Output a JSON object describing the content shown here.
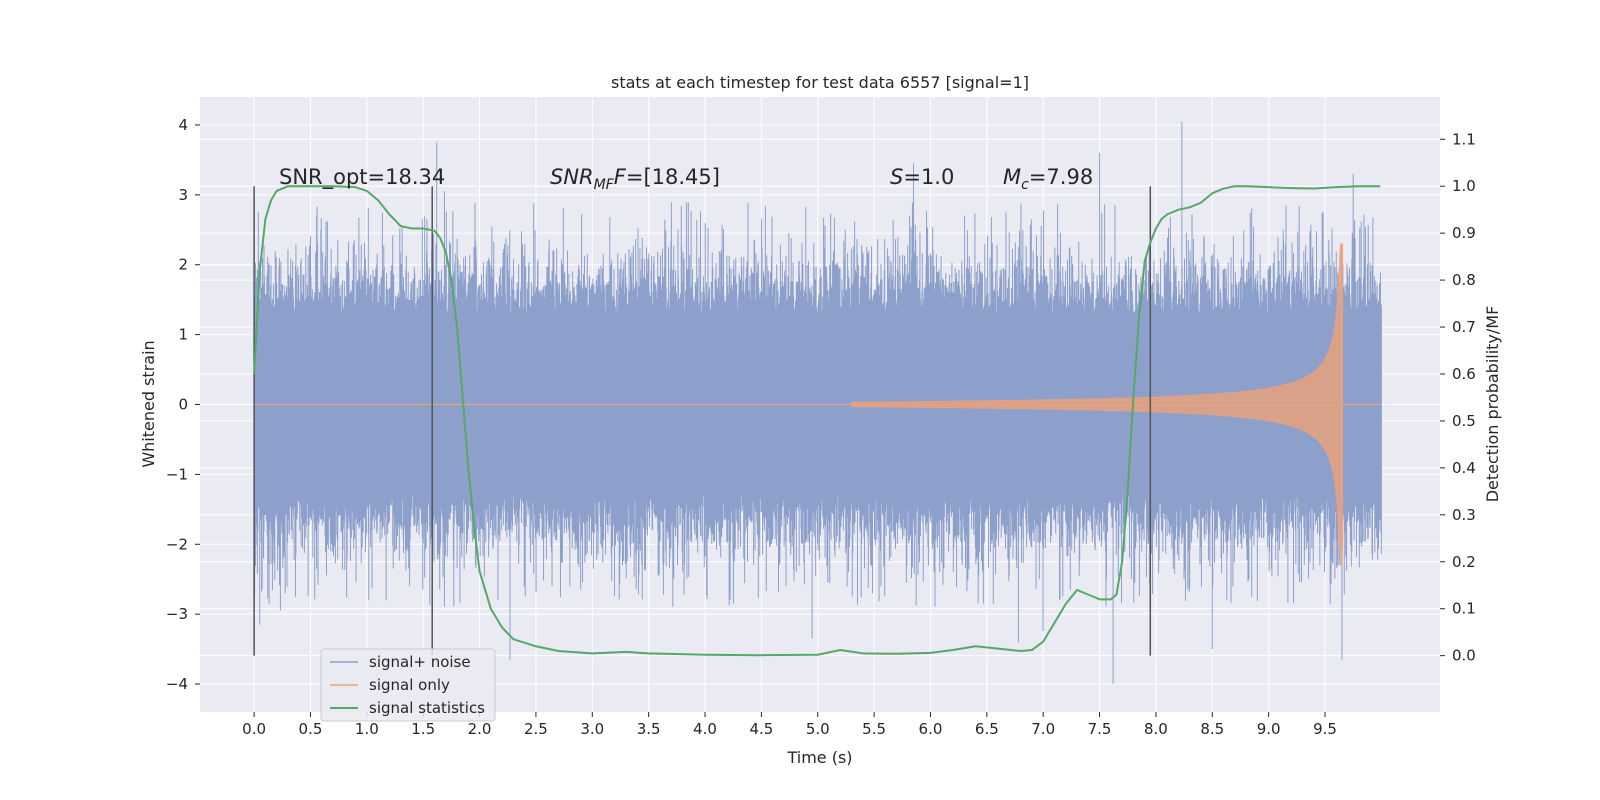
{
  "chart_data": {
    "type": "line",
    "title": "stats at each timestep for test data 6557 [signal=1]",
    "xlabel": "Time (s)",
    "ylabel": "Whitened strain",
    "y2label": "Detection probability/MF",
    "xlim": [
      -0.48,
      10.52
    ],
    "ylim": [
      -4.4,
      4.4
    ],
    "y2lim": [
      -0.12,
      1.19
    ],
    "x_ticks": [
      "0.0",
      "0.5",
      "1.0",
      "1.5",
      "2.0",
      "2.5",
      "3.0",
      "3.5",
      "4.0",
      "4.5",
      "5.0",
      "5.5",
      "6.0",
      "6.5",
      "7.0",
      "7.5",
      "8.0",
      "8.5",
      "9.0",
      "9.5"
    ],
    "y_ticks": [
      -4,
      -3,
      -2,
      -1,
      0,
      1,
      2,
      3,
      4
    ],
    "y_tick_labels": [
      "−4",
      "−3",
      "−2",
      "−1",
      "0",
      "1",
      "2",
      "3",
      "4"
    ],
    "y2_ticks": [
      "0.0",
      "0.1",
      "0.2",
      "0.3",
      "0.4",
      "0.5",
      "0.6",
      "0.7",
      "0.8",
      "0.9",
      "1.0",
      "1.1"
    ],
    "grid": true,
    "legend_position": "bottom-left",
    "colors": {
      "noise": "#8da0cb",
      "signal": "#e8a17e",
      "stats": "#55a868",
      "background": "#eaeaf2",
      "grid": "#ffffff",
      "vlines": "#555555"
    },
    "annotations": {
      "snr_opt": "SNR_opt=18.34",
      "snr_mf_base": "SNR",
      "snr_mf_sub": "MF",
      "snr_mf_value": "=[18.45]",
      "s_base": "S",
      "s_value": "=1.0",
      "mc_base": "M",
      "mc_sub": "c",
      "mc_value": "=7.98"
    },
    "vertical_markers_x": [
      0.0,
      1.58,
      7.95
    ],
    "series": [
      {
        "name": "signal+ noise",
        "description": "noisy whitened strain, x from 0 to 10 s",
        "x_range": [
          0.0,
          10.0
        ],
        "spike_events": [
          [
            0.05,
            -3.15
          ],
          [
            1.62,
            3.75
          ],
          [
            2.27,
            -3.65
          ],
          [
            4.95,
            -3.35
          ],
          [
            5.85,
            3.45
          ],
          [
            6.78,
            -3.4
          ],
          [
            7.5,
            3.6
          ],
          [
            7.62,
            -4.0
          ],
          [
            8.23,
            4.05
          ],
          [
            8.5,
            -3.5
          ],
          [
            9.65,
            -3.65
          ],
          [
            9.75,
            3.3
          ]
        ]
      },
      {
        "name": "signal only",
        "description": "chirp, amplitude grows until merger near 9.65 s",
        "x_range": [
          5.3,
          9.65
        ],
        "peak_amplitude": 2.3
      },
      {
        "name": "signal statistics",
        "axis": "right",
        "x": [
          0.0,
          0.05,
          0.1,
          0.15,
          0.2,
          0.3,
          0.5,
          0.7,
          0.9,
          1.0,
          1.1,
          1.2,
          1.3,
          1.4,
          1.5,
          1.6,
          1.65,
          1.7,
          1.75,
          1.8,
          1.85,
          1.9,
          1.95,
          2.0,
          2.1,
          2.2,
          2.3,
          2.5,
          2.7,
          3.0,
          3.3,
          3.5,
          4.0,
          4.5,
          5.0,
          5.2,
          5.4,
          5.7,
          6.0,
          6.2,
          6.4,
          6.6,
          6.8,
          6.9,
          7.0,
          7.1,
          7.2,
          7.3,
          7.4,
          7.5,
          7.6,
          7.65,
          7.7,
          7.75,
          7.8,
          7.85,
          7.9,
          7.95,
          8.0,
          8.05,
          8.1,
          8.2,
          8.3,
          8.4,
          8.5,
          8.6,
          8.7,
          8.8,
          9.0,
          9.2,
          9.4,
          9.6,
          9.8,
          9.99
        ],
        "values": [
          0.6,
          0.82,
          0.93,
          0.97,
          0.99,
          1.0,
          1.0,
          1.0,
          0.998,
          0.99,
          0.97,
          0.94,
          0.915,
          0.91,
          0.91,
          0.905,
          0.89,
          0.86,
          0.8,
          0.7,
          0.55,
          0.4,
          0.28,
          0.18,
          0.1,
          0.06,
          0.035,
          0.02,
          0.01,
          0.005,
          0.008,
          0.005,
          0.002,
          0.001,
          0.002,
          0.012,
          0.005,
          0.004,
          0.006,
          0.012,
          0.02,
          0.015,
          0.01,
          0.012,
          0.03,
          0.07,
          0.11,
          0.14,
          0.13,
          0.12,
          0.12,
          0.13,
          0.2,
          0.35,
          0.55,
          0.72,
          0.84,
          0.88,
          0.91,
          0.93,
          0.94,
          0.95,
          0.955,
          0.965,
          0.985,
          0.995,
          1.0,
          1.0,
          0.998,
          0.996,
          0.995,
          0.998,
          1.0,
          1.0
        ]
      }
    ]
  }
}
